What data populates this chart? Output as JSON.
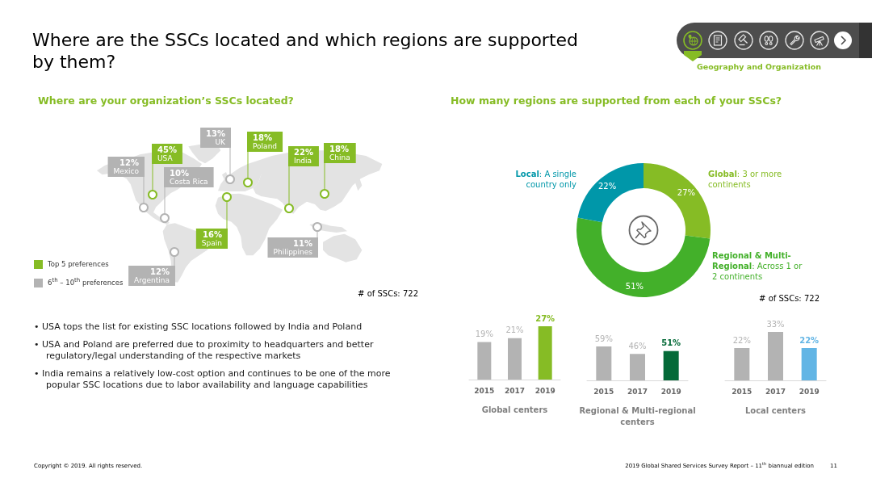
{
  "chart_data": [
    {
      "type": "other",
      "title": "Where are the SSCs located and which regions are supported by them?",
      "annotations": [
        "Geography and Organization",
        "• USA tops the list for existing SSC locations followed by India and Poland",
        "• USA and Poland are preferred due to proximity to headquarters and better regulatory/legal understanding of the respective markets",
        "• India remains a relatively low-cost option and continues to be one of the more popular SSC locations due to labor availability and language capabilities",
        "Copyright © 2019. All rights reserved.",
        "2019 Global Shared Services Survey Report – 11$^{th}$ biannual edition",
        "11"
      ]
    },
    {
      "type": "other",
      "title": "Where are your organization’s SSCs located?",
      "categories": [
        "USA",
        "Mexico",
        "UK",
        "Poland",
        "India",
        "China",
        "Costa Rica",
        "Spain",
        "Philippines",
        "Argentina"
      ],
      "series": [
        {
          "name": "Top 5 preferences",
          "color": "#86bc25",
          "values": [
            45,
            null,
            null,
            18,
            22,
            18,
            null,
            16,
            null,
            null
          ],
          "value_labels": [
            "45%",
            null,
            null,
            "18%",
            "22%",
            "18%",
            null,
            "16%",
            null,
            null
          ]
        },
        {
          "name": "6$^{th}$ – 10$^{th}$ preferences",
          "color": "#b3b3b3",
          "values": [
            null,
            12,
            13,
            null,
            null,
            null,
            10,
            null,
            11,
            12
          ],
          "value_labels": [
            null,
            "12%",
            "13%",
            null,
            null,
            null,
            "10%",
            null,
            "11%",
            "12%"
          ]
        }
      ],
      "legend": "bottom left",
      "annotations": [
        "# of SSCs: 722"
      ]
    },
    {
      "type": "donut",
      "title": "How many regions are supported from each of your SSCs?",
      "categories": [
        "Global: 3 or more continents",
        "Regional & Multi-Regional: Across 1 or 2 continents",
        "Local: A single country only"
      ],
      "values": [
        27,
        51,
        22
      ],
      "colors": [
        "#86bc25",
        "#43b02a",
        "#0097a9"
      ],
      "value_labels": [
        "27%",
        "51%",
        "22%"
      ],
      "annotations": [
        "# of SSCs: 722"
      ]
    },
    {
      "type": "bar",
      "categories": [
        "2015",
        "2017",
        "2019"
      ],
      "values": [
        19,
        21,
        27
      ],
      "colors": [
        "#b3b3b3",
        "#b3b3b3",
        "#86bc25"
      ],
      "value_labels": [
        "19%",
        "21%",
        "27%"
      ],
      "xlabel": "Global centers",
      "tick_labels": "x"
    },
    {
      "type": "bar",
      "categories": [
        "2015",
        "2017",
        "2019"
      ],
      "values": [
        59,
        46,
        51
      ],
      "colors": [
        "#b3b3b3",
        "#b3b3b3",
        "#046a38"
      ],
      "value_labels": [
        "59%",
        "46%",
        "51%"
      ],
      "xlabel": "Regional & Multi-regional centers",
      "tick_labels": "x"
    },
    {
      "type": "bar",
      "categories": [
        "2015",
        "2017",
        "2019"
      ],
      "values": [
        22,
        33,
        22
      ],
      "colors": [
        "#b3b3b3",
        "#b3b3b3",
        "#62b5e5"
      ],
      "value_labels": [
        "22%",
        "33%",
        "22%"
      ],
      "xlabel": "Local centers",
      "tick_labels": "x"
    }
  ]
}
